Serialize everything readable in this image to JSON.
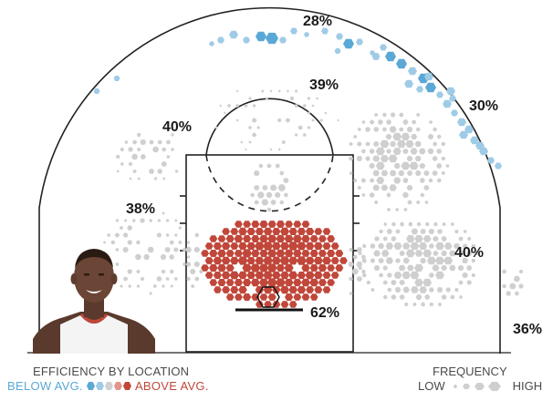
{
  "chart_data": {
    "type": "heatmap",
    "title": "",
    "zones": [
      {
        "zone": "left-corner-three",
        "label": "38%"
      },
      {
        "zone": "left-wing-three",
        "label": "40%"
      },
      {
        "zone": "top-of-key-three",
        "label": "28%"
      },
      {
        "zone": "right-wing-three",
        "label": "30%"
      },
      {
        "zone": "top-of-key-midrange",
        "label": "39%"
      },
      {
        "zone": "right-baseline-midrange",
        "label": "40%"
      },
      {
        "zone": "right-corner-three",
        "label": "36%"
      },
      {
        "zone": "restricted-area",
        "label": "62%"
      }
    ],
    "colors": {
      "below": "#5aa8d6",
      "average": "#cfcfcf",
      "above": "#c0473a"
    }
  },
  "legend": {
    "efficiency_title": "EFFICIENCY BY LOCATION",
    "below_label": "BELOW AVG.",
    "above_label": "ABOVE AVG.",
    "frequency_title": "FREQUENCY",
    "low_label": "LOW",
    "high_label": "HIGH"
  }
}
